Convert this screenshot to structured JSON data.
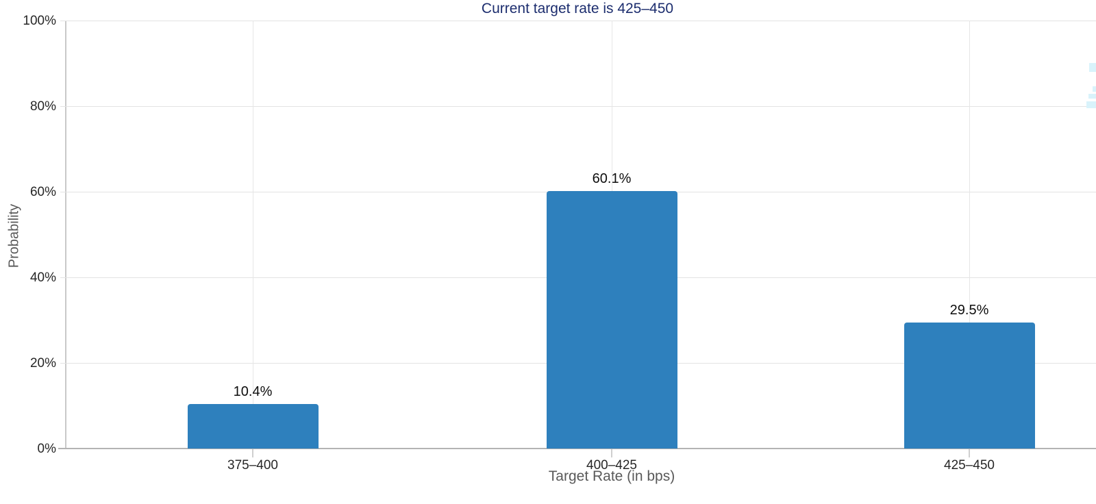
{
  "title": {
    "text": "Current target rate is 425–450",
    "color": "#1c2d6e"
  },
  "chart_data": {
    "type": "bar",
    "title": "Current target rate is 425–450",
    "xlabel": "Target Rate (in bps)",
    "ylabel": "Probability",
    "categories": [
      "375–400",
      "400–425",
      "425–450"
    ],
    "values": [
      10.4,
      60.1,
      29.5
    ],
    "value_labels": [
      "10.4%",
      "60.1%",
      "29.5%"
    ],
    "y_ticks": [
      0,
      20,
      40,
      60,
      80,
      100
    ],
    "y_tick_labels": [
      "0%",
      "20%",
      "40%",
      "60%",
      "80%",
      "100%"
    ],
    "ylim": [
      0,
      100
    ],
    "grid": true,
    "legend": "none",
    "bar_color": "#2e80bd"
  },
  "colors": {
    "bar": "#2e80bd",
    "title_text": "#1c2d6e",
    "gridline": "#e3e3e3",
    "y_axis_line": "#c9c9c9",
    "x_axis_line": "#b3b3b3",
    "tick_label": "#262626",
    "axis_title": "#595959",
    "background": "#ffffff"
  }
}
